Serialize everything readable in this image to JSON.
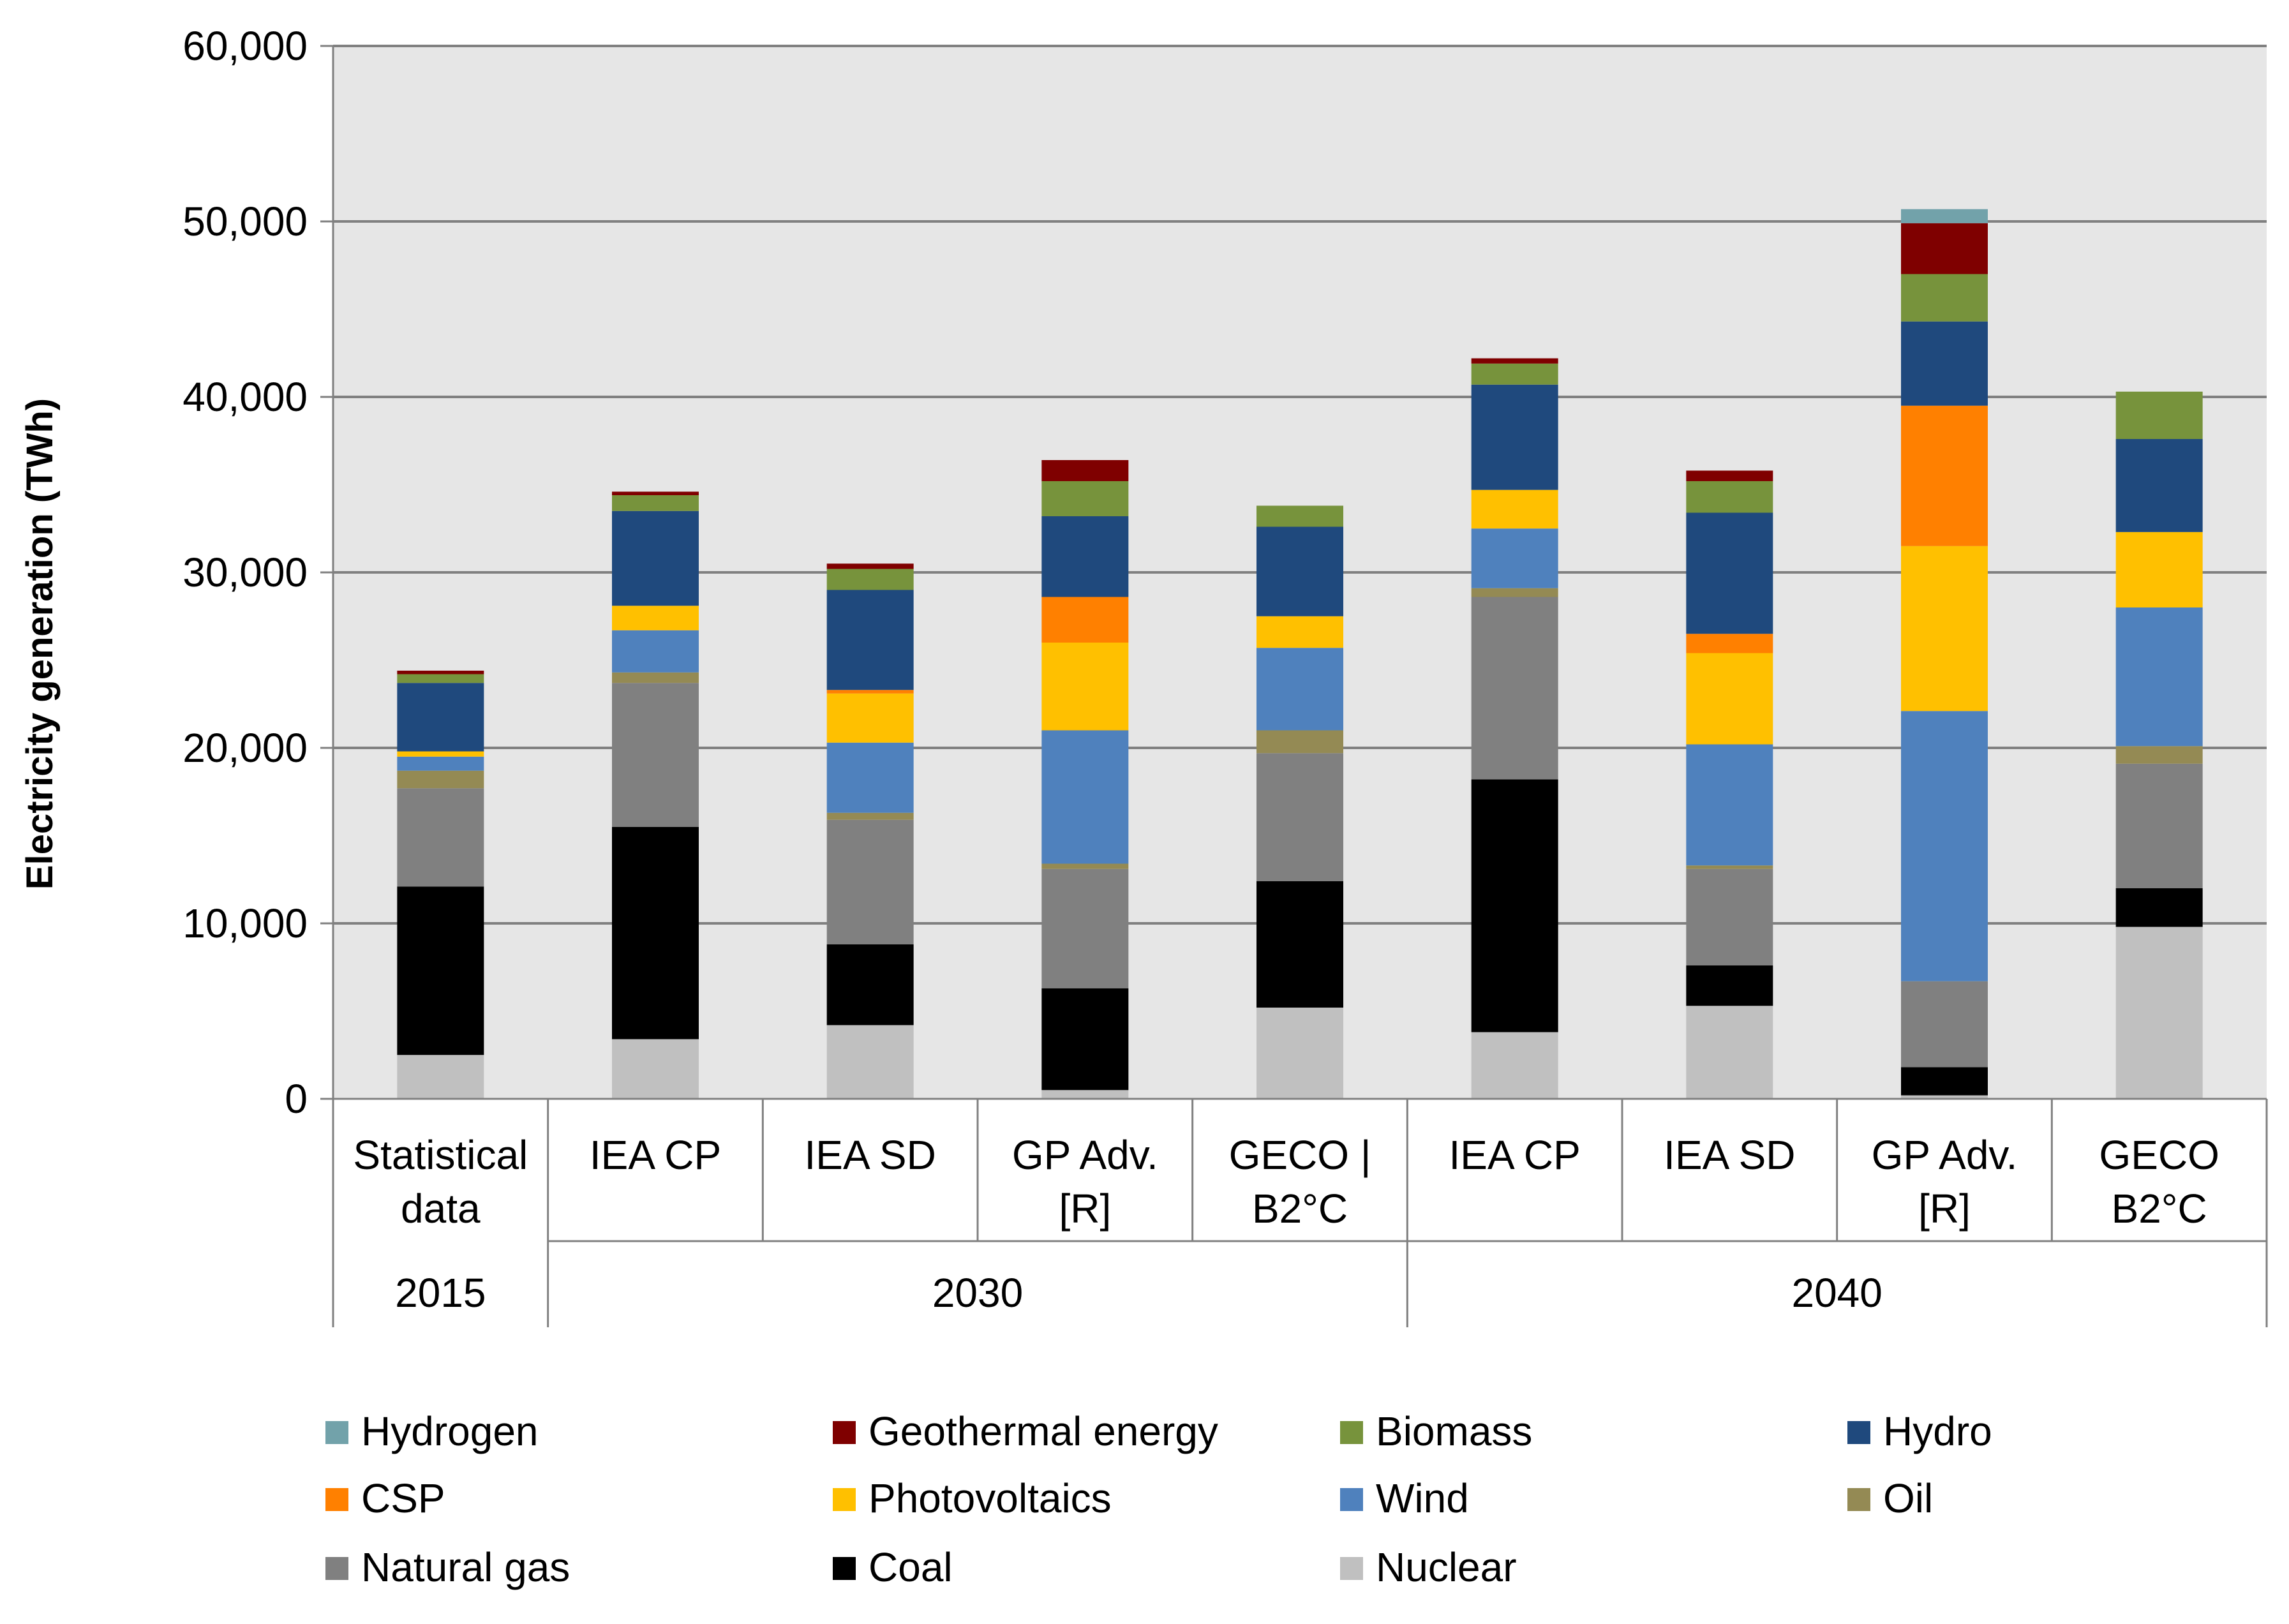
{
  "chart_data": {
    "type": "bar",
    "stacked": true,
    "title": "",
    "xlabel": "",
    "ylabel": "Electricity generation (TWh)",
    "ylim": [
      0,
      60000
    ],
    "yticks": [
      "0",
      "10,000",
      "20,000",
      "30,000",
      "40,000",
      "50,000",
      "60,000"
    ],
    "yticks_values": [
      0,
      10000,
      20000,
      30000,
      40000,
      50000,
      60000
    ],
    "grid": true,
    "legend_position": "bottom",
    "categories": [
      {
        "line1": "Statistical",
        "line2": "data"
      },
      {
        "line1": "IEA CP",
        "line2": ""
      },
      {
        "line1": "IEA SD",
        "line2": ""
      },
      {
        "line1": "GP Adv.",
        "line2": "[R]"
      },
      {
        "line1": "GECO |",
        "line2": "B2°C"
      },
      {
        "line1": "IEA CP",
        "line2": ""
      },
      {
        "line1": "IEA SD",
        "line2": ""
      },
      {
        "line1": "GP Adv.",
        "line2": "[R]"
      },
      {
        "line1": "GECO",
        "line2": "B2°C"
      }
    ],
    "groups": [
      {
        "label": "2015",
        "span": [
          0,
          0
        ]
      },
      {
        "label": "2030",
        "span": [
          1,
          4
        ]
      },
      {
        "label": "2040",
        "span": [
          5,
          8
        ]
      }
    ],
    "series": [
      {
        "name": "Nuclear",
        "color": "#c0c0c0",
        "values": [
          2500,
          3400,
          4200,
          500,
          5200,
          3800,
          5300,
          200,
          9800
        ]
      },
      {
        "name": "Coal",
        "color": "#000000",
        "values": [
          9600,
          12100,
          4600,
          5800,
          7200,
          14400,
          2300,
          1600,
          2200
        ]
      },
      {
        "name": "Natural gas",
        "color": "#808080",
        "values": [
          5600,
          8200,
          7100,
          6800,
          7300,
          10400,
          5500,
          4900,
          7100
        ]
      },
      {
        "name": "Oil",
        "color": "#948a54",
        "values": [
          1000,
          600,
          400,
          300,
          1300,
          500,
          200,
          0,
          1000
        ]
      },
      {
        "name": "Wind",
        "color": "#4f81bd",
        "values": [
          800,
          2400,
          4000,
          7600,
          4700,
          3400,
          6900,
          15400,
          7900
        ]
      },
      {
        "name": "Photovoltaics",
        "color": "#ffc000",
        "values": [
          300,
          1400,
          2800,
          5000,
          1800,
          2200,
          5200,
          9400,
          4300
        ]
      },
      {
        "name": "CSP",
        "color": "#ff8000",
        "values": [
          0,
          0,
          200,
          2600,
          0,
          0,
          1100,
          8000,
          0
        ]
      },
      {
        "name": "Hydro",
        "color": "#1f497d",
        "values": [
          3900,
          5400,
          5700,
          4600,
          5100,
          6000,
          6900,
          4800,
          5300
        ]
      },
      {
        "name": "Biomass",
        "color": "#77933c",
        "values": [
          500,
          900,
          1200,
          2000,
          1200,
          1200,
          1800,
          2700,
          2700
        ]
      },
      {
        "name": "Geothermal energy",
        "color": "#7f0000",
        "values": [
          200,
          200,
          300,
          1200,
          0,
          300,
          600,
          2900,
          0
        ]
      },
      {
        "name": "Hydrogen",
        "color": "#72a2aa",
        "values": [
          0,
          0,
          0,
          0,
          0,
          0,
          0,
          800,
          0
        ]
      }
    ],
    "legend_order": [
      "Hydrogen",
      "Geothermal energy",
      "Biomass",
      "Hydro",
      "CSP",
      "Photovoltaics",
      "Wind",
      "Oil",
      "Natural gas",
      "Coal",
      "Nuclear"
    ]
  }
}
